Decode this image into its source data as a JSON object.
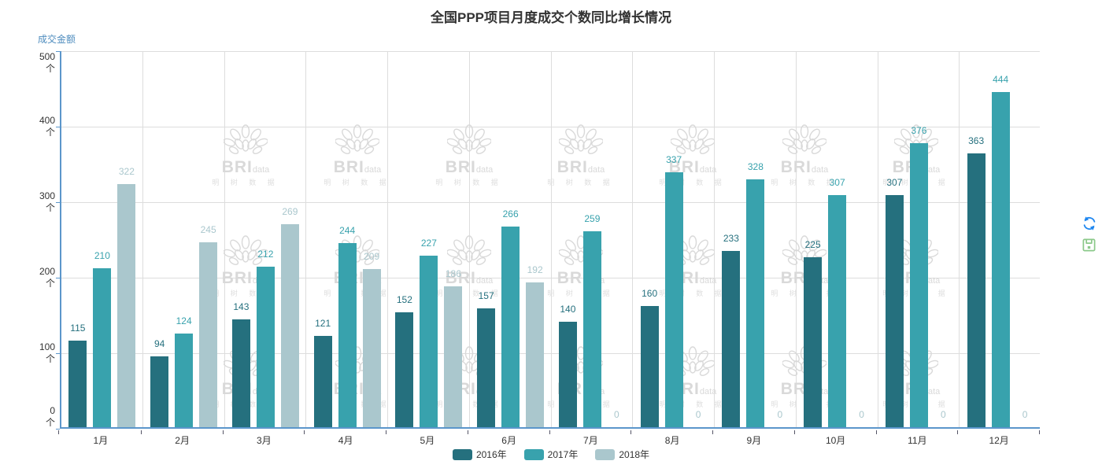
{
  "title": "全国PPP项目月度成交个数同比增长情况",
  "y_axis": {
    "name": "成交金额",
    "unit": "个"
  },
  "chart_data": {
    "type": "bar",
    "title": "全国PPP项目月度成交个数同比增长情况",
    "ylabel": "成交金额",
    "y_unit": "个",
    "ylim": [
      0,
      500
    ],
    "y_ticks": [
      0,
      100,
      200,
      300,
      400,
      500
    ],
    "grid": true,
    "legend_position": "bottom",
    "categories": [
      "1月",
      "2月",
      "3月",
      "4月",
      "5月",
      "6月",
      "7月",
      "8月",
      "9月",
      "10月",
      "11月",
      "12月"
    ],
    "series": [
      {
        "name": "2016年",
        "color": "#25707e",
        "values": [
          115,
          94,
          143,
          121,
          152,
          157,
          140,
          160,
          233,
          225,
          307,
          363
        ]
      },
      {
        "name": "2017年",
        "color": "#38a2ad",
        "values": [
          210,
          124,
          212,
          244,
          227,
          266,
          259,
          337,
          328,
          307,
          376,
          444
        ]
      },
      {
        "name": "2018年",
        "color": "#aac7cd",
        "values": [
          322,
          245,
          269,
          209,
          186,
          192,
          0,
          0,
          0,
          0,
          0,
          0
        ]
      }
    ]
  },
  "toolbox": {
    "refresh_icon": {
      "name": "refresh-icon",
      "color": "#1f87f0"
    },
    "save_icon": {
      "name": "save-image-icon",
      "color": "#8bc98a"
    }
  },
  "watermark": {
    "brand": "BRI",
    "brand_suffix": "data",
    "cn_chars": "明 树 数 据"
  },
  "colors": {
    "axis": "#5b96cb",
    "grid_line": "#dddddd",
    "text": "#333333",
    "axis_name": "#4e8cbe",
    "watermark": "#d9d9d9"
  }
}
